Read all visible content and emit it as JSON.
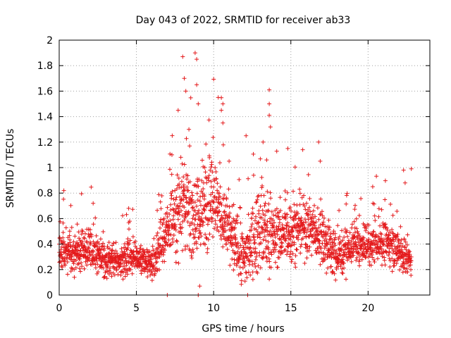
{
  "chart_data": {
    "type": "scatter",
    "title": "Day 043 of 2022, SRMTID for receiver ab33",
    "xlabel": "GPS time / hours",
    "ylabel": "SRMTID / TECUs",
    "xlim": [
      0,
      24
    ],
    "ylim": [
      0,
      2
    ],
    "xticks": [
      0,
      5,
      10,
      15,
      20
    ],
    "yticks": [
      0,
      0.2,
      0.4,
      0.6,
      0.8,
      1,
      1.2,
      1.4,
      1.6,
      1.8,
      2
    ],
    "xtick_labels": [
      "0",
      "5",
      "10",
      "15",
      "20"
    ],
    "ytick_labels": [
      "0",
      "0.2",
      "0.4",
      "0.6",
      "0.8",
      "1",
      "1.2",
      "1.4",
      "1.6",
      "1.8",
      "2"
    ],
    "grid": true,
    "marker": "plus",
    "color": "#e41a1c",
    "trend": {
      "x": [
        0,
        1,
        2,
        3,
        4,
        5,
        6,
        7,
        8,
        9,
        10,
        11,
        12,
        13,
        14,
        15,
        16,
        17,
        18,
        19,
        20,
        21,
        22,
        22.8
      ],
      "y": [
        0.4,
        0.3,
        0.38,
        0.25,
        0.28,
        0.3,
        0.22,
        0.5,
        0.75,
        0.62,
        0.8,
        0.48,
        0.3,
        0.55,
        0.45,
        0.5,
        0.55,
        0.45,
        0.3,
        0.38,
        0.38,
        0.42,
        0.35,
        0.25
      ],
      "spread": [
        0.15,
        0.12,
        0.15,
        0.1,
        0.1,
        0.12,
        0.1,
        0.18,
        0.35,
        0.3,
        0.3,
        0.25,
        0.2,
        0.3,
        0.22,
        0.2,
        0.2,
        0.18,
        0.15,
        0.12,
        0.12,
        0.14,
        0.14,
        0.1
      ]
    },
    "outliers": [
      {
        "x": 8.0,
        "y": 1.87
      },
      {
        "x": 8.8,
        "y": 1.9
      },
      {
        "x": 8.9,
        "y": 1.85
      },
      {
        "x": 8.9,
        "y": 1.65
      },
      {
        "x": 8.1,
        "y": 1.7
      },
      {
        "x": 8.2,
        "y": 1.6
      },
      {
        "x": 13.6,
        "y": 1.61
      },
      {
        "x": 13.6,
        "y": 1.5
      },
      {
        "x": 13.6,
        "y": 1.41
      },
      {
        "x": 10.3,
        "y": 1.55
      },
      {
        "x": 10.6,
        "y": 1.5
      },
      {
        "x": 10.5,
        "y": 1.45
      },
      {
        "x": 9.0,
        "y": 1.5
      },
      {
        "x": 7.7,
        "y": 1.45
      },
      {
        "x": 8.4,
        "y": 1.3
      },
      {
        "x": 10.6,
        "y": 1.35
      },
      {
        "x": 12.1,
        "y": 1.25
      },
      {
        "x": 13.2,
        "y": 1.2
      },
      {
        "x": 16.8,
        "y": 1.2
      },
      {
        "x": 7.3,
        "y": 1.1
      },
      {
        "x": 9.1,
        "y": 0.07
      },
      {
        "x": 9.0,
        "y": 0.0
      },
      {
        "x": 7.0,
        "y": 0.0
      },
      {
        "x": 12.2,
        "y": 0.0
      },
      {
        "x": 22.8,
        "y": 0.99
      },
      {
        "x": 22.3,
        "y": 0.98
      },
      {
        "x": 22.4,
        "y": 0.88
      },
      {
        "x": 0.3,
        "y": 0.82
      },
      {
        "x": 2.2,
        "y": 0.72
      },
      {
        "x": 4.5,
        "y": 0.68
      },
      {
        "x": 14.8,
        "y": 1.15
      },
      {
        "x": 11.0,
        "y": 1.05
      },
      {
        "x": 16.9,
        "y": 1.05
      },
      {
        "x": 20.3,
        "y": 0.85
      }
    ]
  }
}
